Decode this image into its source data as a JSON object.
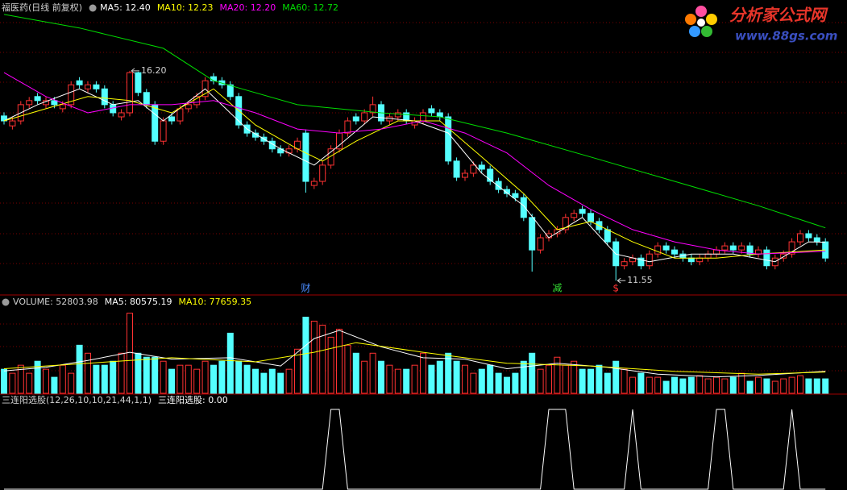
{
  "chart_data": [
    {
      "type": "candlestick",
      "title": "福医药(日线 前复权)",
      "ylim": [
        11.25,
        17.77
      ],
      "up_color": "#ff3232",
      "down_color": "#54ffff",
      "ohlc": [
        [
          15.2,
          15.28,
          15.01,
          15.09
        ],
        [
          14.98,
          15.17,
          14.9,
          15.09
        ],
        [
          15.09,
          15.53,
          15.01,
          15.45
        ],
        [
          15.45,
          15.62,
          15.37,
          15.54
        ],
        [
          15.63,
          15.71,
          15.46,
          15.54
        ],
        [
          15.45,
          15.62,
          15.37,
          15.54
        ],
        [
          15.54,
          15.62,
          15.37,
          15.45
        ],
        [
          15.36,
          15.53,
          15.28,
          15.45
        ],
        [
          15.45,
          15.97,
          15.37,
          15.89
        ],
        [
          15.98,
          16.06,
          15.81,
          15.89
        ],
        [
          15.8,
          15.97,
          15.72,
          15.89
        ],
        [
          15.89,
          15.97,
          15.72,
          15.8
        ],
        [
          15.8,
          15.88,
          15.37,
          15.45
        ],
        [
          15.45,
          15.53,
          15.19,
          15.27
        ],
        [
          15.18,
          15.35,
          15.1,
          15.27
        ],
        [
          15.27,
          16.2,
          15.19,
          16.16
        ],
        [
          16.16,
          16.18,
          15.64,
          15.72
        ],
        [
          15.72,
          15.8,
          15.37,
          15.45
        ],
        [
          15.45,
          15.53,
          14.56,
          14.64
        ],
        [
          14.64,
          15.17,
          14.56,
          15.09
        ],
        [
          15.18,
          15.26,
          15.01,
          15.09
        ],
        [
          15.09,
          15.44,
          15.01,
          15.36
        ],
        [
          15.36,
          15.53,
          15.28,
          15.45
        ],
        [
          15.45,
          15.71,
          15.37,
          15.63
        ],
        [
          15.63,
          16.06,
          15.55,
          15.98
        ],
        [
          16.07,
          16.15,
          15.9,
          15.98
        ],
        [
          15.98,
          16.06,
          15.81,
          15.89
        ],
        [
          15.89,
          15.97,
          15.55,
          15.63
        ],
        [
          15.63,
          15.71,
          14.92,
          15.0
        ],
        [
          15.0,
          15.08,
          14.74,
          14.82
        ],
        [
          14.82,
          14.9,
          14.65,
          14.73
        ],
        [
          14.73,
          14.81,
          14.56,
          14.64
        ],
        [
          14.64,
          14.72,
          14.39,
          14.47
        ],
        [
          14.47,
          14.55,
          14.3,
          14.38
        ],
        [
          14.38,
          14.55,
          14.3,
          14.47
        ],
        [
          14.47,
          14.72,
          14.39,
          14.64
        ],
        [
          14.82,
          14.9,
          13.5,
          13.75
        ],
        [
          13.66,
          13.83,
          13.58,
          13.75
        ],
        [
          13.75,
          14.19,
          13.67,
          14.11
        ],
        [
          14.11,
          14.55,
          14.03,
          14.47
        ],
        [
          14.47,
          14.9,
          14.39,
          14.82
        ],
        [
          14.82,
          15.17,
          14.74,
          15.09
        ],
        [
          15.18,
          15.26,
          15.01,
          15.09
        ],
        [
          15.09,
          15.35,
          15.01,
          15.27
        ],
        [
          15.27,
          15.63,
          15.19,
          15.45
        ],
        [
          15.45,
          15.53,
          15.01,
          15.09
        ],
        [
          15.09,
          15.26,
          15.01,
          15.18
        ],
        [
          15.18,
          15.35,
          15.1,
          15.27
        ],
        [
          15.27,
          15.35,
          15.01,
          15.09
        ],
        [
          15.0,
          15.17,
          14.92,
          15.09
        ],
        [
          15.09,
          15.35,
          15.01,
          15.27
        ],
        [
          15.36,
          15.44,
          15.19,
          15.27
        ],
        [
          15.27,
          15.35,
          15.1,
          15.18
        ],
        [
          15.18,
          15.26,
          14.12,
          14.2
        ],
        [
          14.2,
          14.28,
          13.76,
          13.84
        ],
        [
          13.84,
          14.01,
          13.76,
          13.93
        ],
        [
          13.93,
          14.19,
          13.85,
          14.11
        ],
        [
          14.11,
          14.19,
          13.94,
          14.02
        ],
        [
          14.02,
          14.1,
          13.67,
          13.75
        ],
        [
          13.75,
          13.83,
          13.49,
          13.57
        ],
        [
          13.57,
          13.65,
          13.4,
          13.48
        ],
        [
          13.48,
          13.56,
          13.31,
          13.39
        ],
        [
          13.39,
          13.47,
          12.87,
          12.95
        ],
        [
          12.95,
          13.03,
          11.75,
          12.23
        ],
        [
          12.23,
          12.58,
          12.15,
          12.5
        ],
        [
          12.5,
          12.67,
          12.42,
          12.59
        ],
        [
          12.59,
          12.76,
          12.51,
          12.68
        ],
        [
          12.68,
          13.03,
          12.6,
          12.95
        ],
        [
          12.95,
          13.12,
          12.87,
          13.04
        ],
        [
          13.13,
          13.21,
          12.96,
          13.04
        ],
        [
          13.04,
          13.12,
          12.78,
          12.86
        ],
        [
          12.86,
          12.94,
          12.6,
          12.68
        ],
        [
          12.68,
          12.76,
          12.33,
          12.41
        ],
        [
          12.41,
          12.49,
          11.55,
          11.88
        ],
        [
          11.88,
          12.05,
          11.8,
          11.97
        ],
        [
          11.97,
          12.13,
          11.89,
          12.05
        ],
        [
          12.05,
          12.13,
          11.8,
          11.88
        ],
        [
          11.88,
          12.22,
          11.8,
          12.14
        ],
        [
          12.14,
          12.4,
          12.06,
          12.32
        ],
        [
          12.32,
          12.4,
          12.15,
          12.23
        ],
        [
          12.23,
          12.31,
          12.06,
          12.14
        ],
        [
          12.14,
          12.22,
          11.97,
          12.05
        ],
        [
          12.05,
          12.13,
          11.89,
          11.97
        ],
        [
          11.97,
          12.13,
          11.89,
          12.05
        ],
        [
          12.05,
          12.22,
          11.97,
          12.14
        ],
        [
          12.14,
          12.31,
          12.06,
          12.23
        ],
        [
          12.23,
          12.4,
          12.15,
          12.32
        ],
        [
          12.32,
          12.4,
          12.15,
          12.23
        ],
        [
          12.23,
          12.4,
          12.15,
          12.32
        ],
        [
          12.32,
          12.4,
          12.06,
          12.14
        ],
        [
          12.14,
          12.31,
          12.06,
          12.23
        ],
        [
          12.23,
          12.31,
          11.8,
          11.88
        ],
        [
          11.88,
          12.13,
          11.8,
          12.05
        ],
        [
          12.05,
          12.22,
          11.97,
          12.14
        ],
        [
          12.14,
          12.49,
          12.06,
          12.41
        ],
        [
          12.41,
          12.67,
          12.33,
          12.59
        ],
        [
          12.59,
          12.67,
          12.42,
          12.5
        ],
        [
          12.5,
          12.58,
          12.33,
          12.41
        ],
        [
          12.41,
          12.49,
          11.97,
          12.05
        ]
      ],
      "series": [
        {
          "name": "MA5: 12.40",
          "color": "#ffffff",
          "x": [
            0,
            4,
            9,
            13,
            16,
            19,
            24,
            29,
            33,
            37,
            40,
            44,
            49,
            53,
            57,
            62,
            65,
            69,
            73,
            77,
            82,
            87,
            92,
            96,
            98
          ],
          "values": [
            15.09,
            15.45,
            15.8,
            15.45,
            15.54,
            15.09,
            15.8,
            14.91,
            14.47,
            14.11,
            14.55,
            15.18,
            15.09,
            14.82,
            13.93,
            13.21,
            12.5,
            12.95,
            12.14,
            11.97,
            12.14,
            12.14,
            11.97,
            12.41,
            12.4
          ]
        },
        {
          "name": "MA10: 12.23",
          "color": "#ffff00",
          "x": [
            0,
            5,
            10,
            15,
            20,
            25,
            30,
            35,
            38,
            42,
            47,
            52,
            57,
            62,
            66,
            70,
            75,
            80,
            85,
            90,
            98
          ],
          "values": [
            15.09,
            15.36,
            15.63,
            15.54,
            15.27,
            15.8,
            15.0,
            14.47,
            14.2,
            14.64,
            15.09,
            15.09,
            14.29,
            13.48,
            12.68,
            12.86,
            12.41,
            12.05,
            12.05,
            12.14,
            12.23
          ]
        },
        {
          "name": "MA20: 12.20",
          "color": "#ff00ff",
          "x": [
            0,
            5,
            10,
            15,
            20,
            25,
            30,
            35,
            40,
            45,
            50,
            55,
            60,
            65,
            70,
            75,
            80,
            85,
            90,
            98
          ],
          "values": [
            16.16,
            15.63,
            15.27,
            15.45,
            15.45,
            15.54,
            15.27,
            14.91,
            14.82,
            14.91,
            15.09,
            14.82,
            14.38,
            13.66,
            13.13,
            12.68,
            12.41,
            12.23,
            12.14,
            12.2
          ]
        },
        {
          "name": "MA60: 12.72",
          "color": "#00dd00",
          "x": [
            0,
            9,
            19,
            25,
            35,
            45,
            52,
            60,
            70,
            80,
            90,
            98
          ],
          "values": [
            17.45,
            17.15,
            16.7,
            15.98,
            15.45,
            15.27,
            15.18,
            14.82,
            14.29,
            13.75,
            13.21,
            12.72
          ]
        }
      ],
      "annotations": [
        {
          "x": 15,
          "value": 16.2,
          "label": "16.20"
        },
        {
          "x": 73,
          "value": 11.55,
          "label": "11.55"
        }
      ],
      "markers": [
        {
          "x": 36,
          "text": "财",
          "color": "#4a8cff"
        },
        {
          "x": 66,
          "text": "减",
          "color": "#33dd33"
        },
        {
          "x": 73,
          "text": "$",
          "color": "#ff3232"
        }
      ]
    },
    {
      "type": "bar",
      "title": "VOLUME: 52803.98",
      "ylim": [
        0,
        330000
      ],
      "up_color": "#ff3232",
      "down_color": "#54ffff",
      "values": [
        87900,
        73300,
        102600,
        73300,
        117200,
        87900,
        58600,
        102600,
        73300,
        175800,
        146500,
        102600,
        102600,
        117200,
        146500,
        293000,
        146500,
        131900,
        131900,
        117200,
        87900,
        102600,
        102600,
        87900,
        117200,
        102600,
        117200,
        219800,
        117200,
        102600,
        87900,
        73300,
        87900,
        73300,
        87900,
        161200,
        278400,
        263700,
        249100,
        205100,
        234400,
        175800,
        146500,
        117200,
        146500,
        117200,
        102600,
        87900,
        87900,
        102600,
        146500,
        102600,
        117200,
        146500,
        117200,
        102600,
        73300,
        87900,
        102600,
        73300,
        58600,
        73300,
        117200,
        146500,
        87900,
        102600,
        131900,
        102600,
        117200,
        87900,
        87900,
        102600,
        73300,
        117200,
        87900,
        58600,
        73300,
        58600,
        58600,
        44000,
        58600,
        52800,
        58600,
        64500,
        52800,
        58600,
        52800,
        58600,
        73300,
        44000,
        58600,
        52800,
        44000,
        52800,
        58600,
        64500,
        52800,
        52800,
        52803.98
      ],
      "series": [
        {
          "name": "MA5: 80575.19",
          "color": "#ffffff",
          "x": [
            0,
            5,
            10,
            15,
            20,
            27,
            33,
            37,
            40,
            45,
            50,
            55,
            60,
            66,
            72,
            78,
            85,
            90,
            98
          ],
          "values": [
            82000,
            95000,
            120000,
            150000,
            125000,
            130000,
            100000,
            200000,
            230000,
            170000,
            130000,
            125000,
            90000,
            110000,
            95000,
            70000,
            60000,
            65000,
            80575.19
          ]
        },
        {
          "name": "MA10: 77659.35",
          "color": "#ffff00",
          "x": [
            0,
            10,
            20,
            30,
            37,
            42,
            50,
            60,
            70,
            80,
            90,
            98
          ],
          "values": [
            90000,
            110000,
            130000,
            115000,
            150000,
            185000,
            150000,
            110000,
            100000,
            80000,
            70000,
            77659.35
          ]
        }
      ]
    },
    {
      "type": "line",
      "title": "三连阳选股(12,26,10,10,21,44,1,1)",
      "ylim": [
        0,
        1
      ],
      "series": [
        {
          "name": "三连阳选股: 0.00",
          "color": "#ffffff",
          "x": [
            0,
            38,
            39,
            40,
            41,
            64,
            65,
            67,
            68,
            74,
            75,
            76,
            84,
            85,
            86,
            87,
            93,
            94,
            95,
            98
          ],
          "values": [
            0,
            0,
            1,
            1,
            0,
            0,
            1,
            1,
            0,
            0,
            1,
            0,
            0,
            1,
            1,
            0,
            0,
            1,
            0,
            0
          ]
        }
      ]
    }
  ],
  "watermark": {
    "title": "分析家公式网",
    "url": "www.88gs.com"
  }
}
